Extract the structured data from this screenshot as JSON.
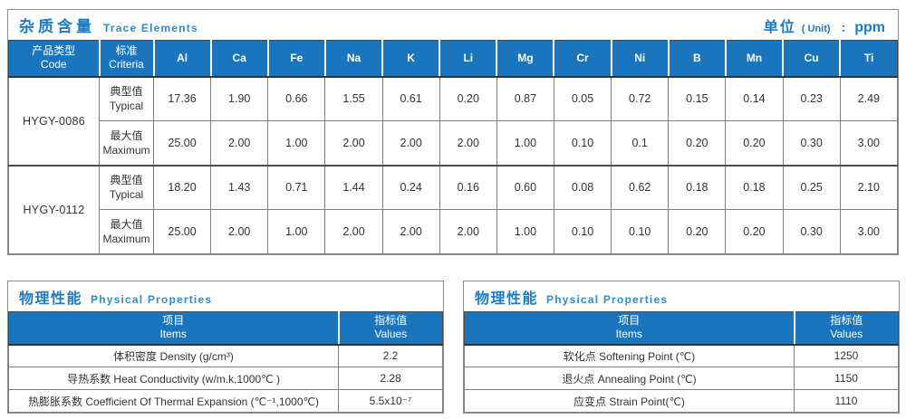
{
  "colors": {
    "header_bg": "#1b75bc",
    "title_blue": "#1d7bc4",
    "title_blue_light": "#2f8bcc",
    "body_text": "#333333"
  },
  "trace": {
    "title_cn": "杂质含量",
    "title_en": "Trace Elements",
    "unit_cn": "单位",
    "unit_paren": "( Unit)",
    "unit_colon": ":",
    "unit_value": "ppm",
    "col_product_cn": "产品类型",
    "col_product_en": "Code",
    "col_criteria_cn": "标准",
    "col_criteria_en": "Criteria",
    "elements": [
      "Al",
      "Ca",
      "Fe",
      "Na",
      "K",
      "Li",
      "Mg",
      "Cr",
      "Ni",
      "B",
      "Mn",
      "Cu",
      "Ti"
    ],
    "groups": [
      {
        "code": "HYGY-0086",
        "rows": [
          {
            "label_cn": "典型值",
            "label_en": "Typical",
            "values": [
              "17.36",
              "1.90",
              "0.66",
              "1.55",
              "0.61",
              "0.20",
              "0.87",
              "0.05",
              "0.72",
              "0.15",
              "0.14",
              "0.23",
              "2.49"
            ]
          },
          {
            "label_cn": "最大值",
            "label_en": "Maximum",
            "values": [
              "25.00",
              "2.00",
              "1.00",
              "2.00",
              "2.00",
              "2.00",
              "1.00",
              "0.10",
              "0.1",
              "0.20",
              "0.20",
              "0.30",
              "3.00"
            ]
          }
        ]
      },
      {
        "code": "HYGY-0112",
        "rows": [
          {
            "label_cn": "典型值",
            "label_en": "Typical",
            "values": [
              "18.20",
              "1.43",
              "0.71",
              "1.44",
              "0.24",
              "0.16",
              "0.60",
              "0.08",
              "0.62",
              "0.18",
              "0.18",
              "0.25",
              "2.10"
            ]
          },
          {
            "label_cn": "最大值",
            "label_en": "Maximum",
            "values": [
              "25.00",
              "2.00",
              "1.00",
              "2.00",
              "2.00",
              "2.00",
              "1.00",
              "0.10",
              "0.10",
              "0.20",
              "0.20",
              "0.30",
              "3.00"
            ]
          }
        ]
      }
    ]
  },
  "physical_left": {
    "title_cn": "物理性能",
    "title_en": "Physical Properties",
    "col_items_cn": "项目",
    "col_items_en": "Items",
    "col_values_cn": "指标值",
    "col_values_en": "Values",
    "rows": [
      {
        "item": "体积密度 Density (g/cm³)",
        "value": "2.2"
      },
      {
        "item": "导热系数 Heat Conductivity (w/m.k,1000℃ )",
        "value": "2.28"
      },
      {
        "item": "热膨胀系数 Coefficient Of Thermal Expansion (℃⁻¹,1000℃)",
        "value": "5.5x10⁻⁷"
      }
    ]
  },
  "physical_right": {
    "title_cn": "物理性能",
    "title_en": "Physical Properties",
    "col_items_cn": "项目",
    "col_items_en": "Items",
    "col_values_cn": "指标值",
    "col_values_en": "Values",
    "rows": [
      {
        "item": "软化点 Softening Point (℃)",
        "value": "1250"
      },
      {
        "item": "退火点 Annealing Point (℃)",
        "value": "1150"
      },
      {
        "item": "应变点 Strain Point(℃)",
        "value": "1110"
      }
    ]
  }
}
